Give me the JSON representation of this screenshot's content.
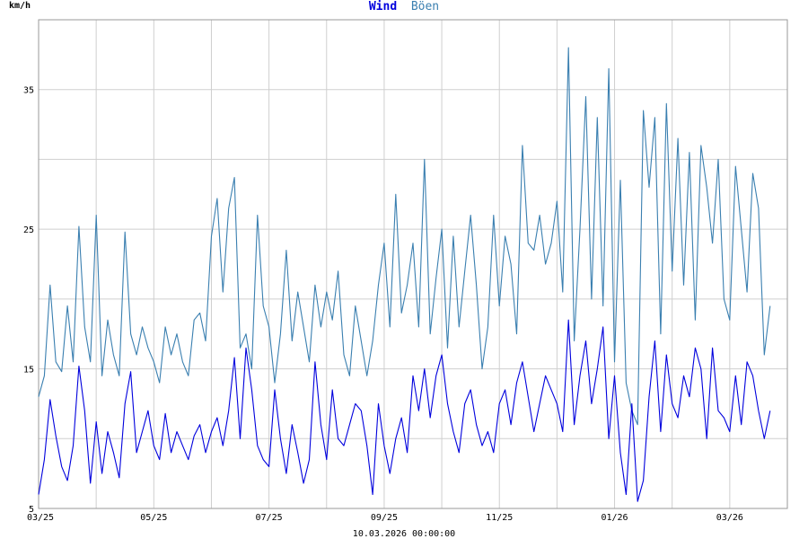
{
  "chart_data": {
    "type": "line",
    "title_parts": [
      {
        "text": "Wind",
        "color": "#0000dd"
      },
      {
        "text": "Böen",
        "color": "#3a7fb0"
      }
    ],
    "ylabel": "km/h",
    "xlabel": "10.03.2026 00:00:00",
    "ylim": [
      5,
      40
    ],
    "y_ticks": [
      "35",
      "25",
      "15",
      "5"
    ],
    "y_tick_values": [
      35,
      25,
      15,
      5
    ],
    "y_grid_values": [
      10,
      15,
      20,
      25,
      30,
      35
    ],
    "x_ticks": [
      "03/25",
      "05/25",
      "07/25",
      "09/25",
      "11/25",
      "01/26",
      "03/26"
    ],
    "x_range_months": [
      0,
      13
    ],
    "x_month_starts": [
      0,
      1,
      2,
      3,
      4,
      5,
      6,
      7,
      8,
      9,
      10,
      11,
      12,
      13
    ],
    "x_label_months": [
      0,
      2,
      4,
      6,
      8,
      10,
      12
    ],
    "grid": true,
    "series": [
      {
        "name": "Wind",
        "color": "#0000dd",
        "x": [
          0.0,
          0.1,
          0.2,
          0.3,
          0.4,
          0.5,
          0.6,
          0.7,
          0.8,
          0.9,
          1.0,
          1.1,
          1.2,
          1.3,
          1.4,
          1.5,
          1.6,
          1.7,
          1.8,
          1.9,
          2.0,
          2.1,
          2.2,
          2.3,
          2.4,
          2.5,
          2.6,
          2.7,
          2.8,
          2.9,
          3.0,
          3.1,
          3.2,
          3.3,
          3.4,
          3.5,
          3.6,
          3.7,
          3.8,
          3.9,
          4.0,
          4.1,
          4.2,
          4.3,
          4.4,
          4.5,
          4.6,
          4.7,
          4.8,
          4.9,
          5.0,
          5.1,
          5.2,
          5.3,
          5.4,
          5.5,
          5.6,
          5.7,
          5.8,
          5.9,
          6.0,
          6.1,
          6.2,
          6.3,
          6.4,
          6.5,
          6.6,
          6.7,
          6.8,
          6.9,
          7.0,
          7.1,
          7.2,
          7.3,
          7.4,
          7.5,
          7.6,
          7.7,
          7.8,
          7.9,
          8.0,
          8.1,
          8.2,
          8.3,
          8.4,
          8.5,
          8.6,
          8.7,
          8.8,
          8.9,
          9.0,
          9.1,
          9.2,
          9.3,
          9.4,
          9.5,
          9.6,
          9.7,
          9.8,
          9.9,
          10.0,
          10.1,
          10.2,
          10.3,
          10.4,
          10.5,
          10.6,
          10.7,
          10.8,
          10.9,
          11.0,
          11.1,
          11.2,
          11.3,
          11.4,
          11.5,
          11.6,
          11.7,
          11.8,
          11.9,
          12.0,
          12.1,
          12.2,
          12.3,
          12.4,
          12.5,
          12.6,
          12.7
        ],
        "values": [
          6.0,
          8.5,
          12.8,
          10.2,
          8.0,
          7.0,
          9.5,
          15.2,
          12.0,
          6.8,
          11.2,
          7.5,
          10.5,
          9.0,
          7.2,
          12.5,
          14.8,
          9.0,
          10.5,
          12.0,
          9.5,
          8.5,
          11.8,
          9.0,
          10.5,
          9.5,
          8.5,
          10.2,
          11.0,
          9.0,
          10.5,
          11.5,
          9.5,
          12.0,
          15.8,
          10.0,
          16.5,
          13.5,
          9.5,
          8.5,
          8.0,
          13.5,
          10.0,
          7.5,
          11.0,
          9.0,
          6.8,
          8.5,
          15.5,
          11.0,
          8.5,
          13.5,
          10.0,
          9.5,
          11.0,
          12.5,
          12.0,
          9.5,
          6.0,
          12.5,
          9.5,
          7.5,
          10.0,
          11.5,
          9.0,
          14.5,
          12.0,
          15.0,
          11.5,
          14.5,
          16.0,
          12.5,
          10.5,
          9.0,
          12.5,
          13.5,
          11.0,
          9.5,
          10.5,
          9.0,
          12.5,
          13.5,
          11.0,
          14.0,
          15.5,
          13.0,
          10.5,
          12.5,
          14.5,
          13.5,
          12.5,
          10.5,
          18.5,
          11.0,
          14.5,
          17.0,
          12.5,
          15.0,
          18.0,
          10.0,
          14.5,
          9.0,
          6.0,
          12.5,
          5.5,
          7.0,
          13.0,
          17.0,
          10.5,
          16.0,
          12.5,
          11.5,
          14.5,
          13.0,
          16.5,
          15.0,
          10.0,
          16.5,
          12.0,
          11.5,
          10.5,
          14.5,
          11.0,
          15.5,
          14.5,
          12.0,
          10.0,
          12.0
        ]
      },
      {
        "name": "Böen",
        "color": "#3a7fb0",
        "x": [
          0.0,
          0.1,
          0.2,
          0.3,
          0.4,
          0.5,
          0.6,
          0.7,
          0.8,
          0.9,
          1.0,
          1.1,
          1.2,
          1.3,
          1.4,
          1.5,
          1.6,
          1.7,
          1.8,
          1.9,
          2.0,
          2.1,
          2.2,
          2.3,
          2.4,
          2.5,
          2.6,
          2.7,
          2.8,
          2.9,
          3.0,
          3.1,
          3.2,
          3.3,
          3.4,
          3.5,
          3.6,
          3.7,
          3.8,
          3.9,
          4.0,
          4.1,
          4.2,
          4.3,
          4.4,
          4.5,
          4.6,
          4.7,
          4.8,
          4.9,
          5.0,
          5.1,
          5.2,
          5.3,
          5.4,
          5.5,
          5.6,
          5.7,
          5.8,
          5.9,
          6.0,
          6.1,
          6.2,
          6.3,
          6.4,
          6.5,
          6.6,
          6.7,
          6.8,
          6.9,
          7.0,
          7.1,
          7.2,
          7.3,
          7.4,
          7.5,
          7.6,
          7.7,
          7.8,
          7.9,
          8.0,
          8.1,
          8.2,
          8.3,
          8.4,
          8.5,
          8.6,
          8.7,
          8.8,
          8.9,
          9.0,
          9.1,
          9.2,
          9.3,
          9.4,
          9.5,
          9.6,
          9.7,
          9.8,
          9.9,
          10.0,
          10.1,
          10.2,
          10.3,
          10.4,
          10.5,
          10.6,
          10.7,
          10.8,
          10.9,
          11.0,
          11.1,
          11.2,
          11.3,
          11.4,
          11.5,
          11.6,
          11.7,
          11.8,
          11.9,
          12.0,
          12.1,
          12.2,
          12.3,
          12.4,
          12.5,
          12.6,
          12.7
        ],
        "values": [
          13.0,
          14.5,
          21.0,
          15.5,
          14.8,
          19.5,
          15.5,
          25.2,
          18.0,
          15.5,
          26.0,
          14.5,
          18.5,
          16.0,
          14.5,
          24.8,
          17.5,
          16.0,
          18.0,
          16.5,
          15.5,
          14.0,
          18.0,
          16.0,
          17.5,
          15.5,
          14.5,
          18.5,
          19.0,
          17.0,
          24.5,
          27.2,
          20.5,
          26.5,
          28.7,
          16.5,
          17.5,
          15.0,
          26.0,
          19.5,
          18.0,
          14.0,
          17.5,
          23.5,
          17.0,
          20.5,
          18.0,
          15.5,
          21.0,
          18.0,
          20.5,
          18.5,
          22.0,
          16.0,
          14.5,
          19.5,
          17.0,
          14.5,
          17.0,
          21.0,
          24.0,
          18.0,
          27.5,
          19.0,
          21.0,
          24.0,
          18.0,
          30.0,
          17.5,
          21.5,
          25.0,
          16.5,
          24.5,
          18.0,
          22.0,
          26.0,
          21.0,
          15.0,
          18.0,
          26.0,
          19.5,
          24.5,
          22.5,
          17.5,
          31.0,
          24.0,
          23.5,
          26.0,
          22.5,
          24.0,
          27.0,
          20.5,
          38.0,
          17.0,
          25.0,
          34.5,
          20.0,
          33.0,
          19.5,
          36.5,
          15.5,
          28.5,
          14.0,
          12.0,
          11.0,
          33.5,
          28.0,
          33.0,
          17.5,
          34.0,
          22.0,
          31.5,
          21.0,
          30.5,
          18.5,
          31.0,
          28.0,
          24.0,
          30.0,
          20.0,
          18.5,
          29.5,
          25.0,
          20.5,
          29.0,
          26.5,
          16.0,
          19.5
        ]
      }
    ]
  }
}
